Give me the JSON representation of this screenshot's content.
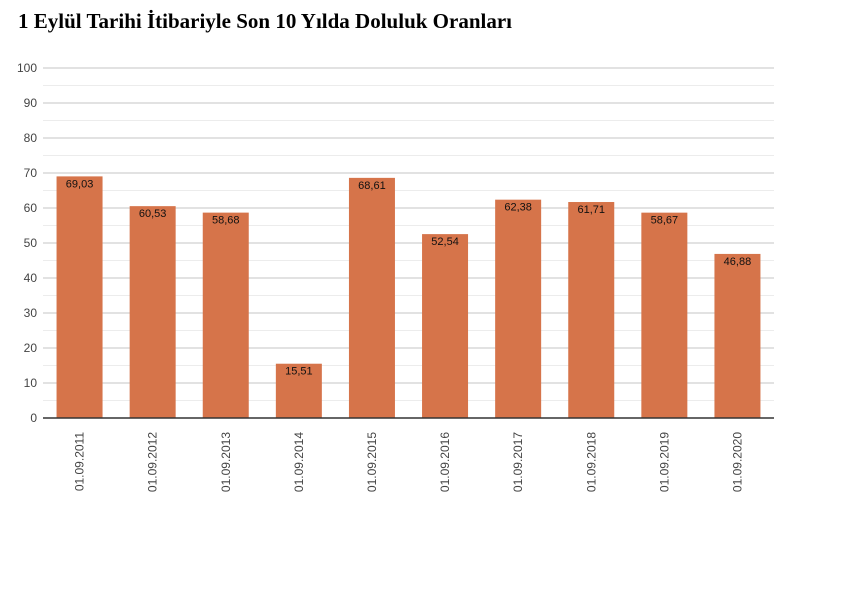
{
  "chart_data": {
    "type": "bar",
    "title": "1 Eylül Tarihi İtibariyle Son 10 Yılda Doluluk Oranları",
    "xlabel": "",
    "ylabel": "",
    "ylim": [
      0,
      100
    ],
    "yticks": [
      0,
      10,
      20,
      30,
      40,
      50,
      60,
      70,
      80,
      90,
      100
    ],
    "grid": true,
    "bar_color": "#d6744a",
    "categories": [
      "01.09.2011",
      "01.09.2012",
      "01.09.2013",
      "01.09.2014",
      "01.09.2015",
      "01.09.2016",
      "01.09.2017",
      "01.09.2018",
      "01.09.2019",
      "01.09.2020"
    ],
    "values": [
      69.03,
      60.53,
      58.68,
      15.51,
      68.61,
      52.54,
      62.38,
      61.71,
      58.67,
      46.88
    ],
    "value_labels": [
      "69,03",
      "60,53",
      "58,68",
      "15,51",
      "68,61",
      "52,54",
      "62,38",
      "61,71",
      "58,67",
      "46,88"
    ]
  }
}
